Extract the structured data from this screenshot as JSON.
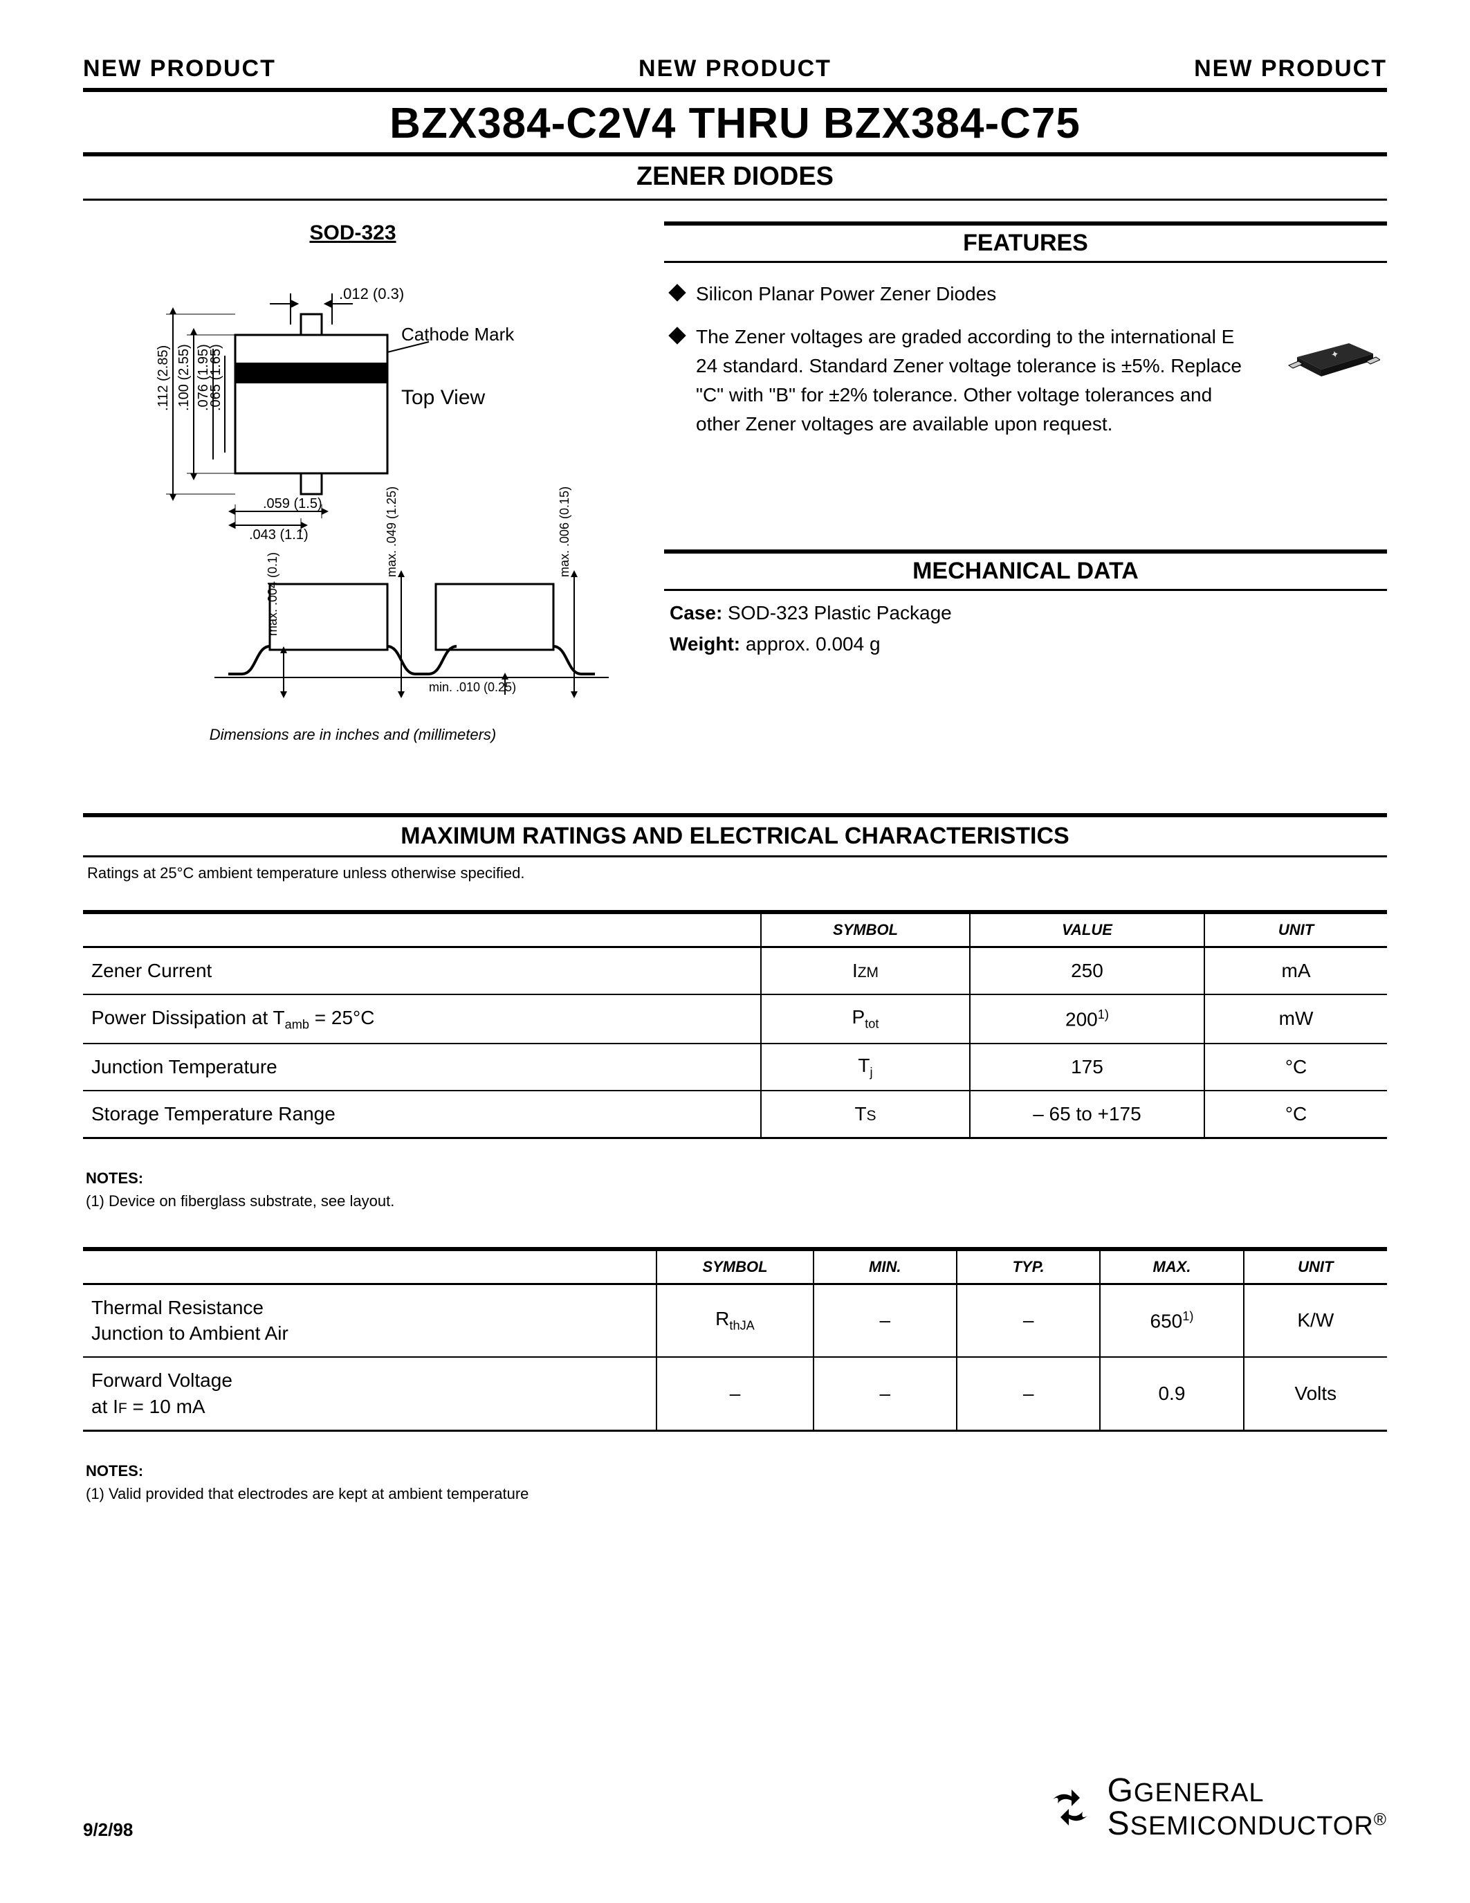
{
  "header": {
    "banner": "NEW PRODUCT",
    "title": "BZX384-C2V4 THRU BZX384-C75",
    "subtitle": "ZENER DIODES"
  },
  "package": {
    "label": "SOD-323",
    "top_view": "Top View",
    "cathode_mark": "Cathode Mark",
    "dims_note": "Dimensions are in inches and (millimeters)",
    "dims": {
      "lead_w": ".012 (0.3)",
      "body_h_outer": ".112 (2.85)",
      "body_h_inner": ".100 (2.55)",
      "body_w_inner": ".076 (1.95)",
      "body_w_inner2": ".065 (1.65)",
      "lead_len_outer": ".059 (1.5)",
      "lead_len_inner": ".043 (1.1)",
      "side_h1": "max. .004 (0.1)",
      "side_h2": "max. .049 (1.25)",
      "side_h3": "max. .006 (0.15)",
      "side_gap": "min. .010 (0.25)"
    }
  },
  "features": {
    "heading": "FEATURES",
    "items": [
      "Silicon Planar Power Zener Diodes",
      "The Zener voltages are graded according to the international E 24 standard. Standard Zener voltage tolerance is ±5%. Replace \"C\" with \"B\" for ±2% tolerance. Other voltage tolerances and other Zener voltages are available upon request."
    ]
  },
  "mechanical": {
    "heading": "MECHANICAL DATA",
    "case_label": "Case:",
    "case_value": "SOD-323 Plastic Package",
    "weight_label": "Weight:",
    "weight_value": "approx. 0.004 g"
  },
  "max_ratings": {
    "heading": "MAXIMUM RATINGS AND ELECTRICAL CHARACTERISTICS",
    "condition": "Ratings at 25°C ambient temperature unless otherwise specified."
  },
  "table1": {
    "columns": [
      "",
      "SYMBOL",
      "VALUE",
      "UNIT"
    ],
    "col_widths": [
      "52%",
      "16%",
      "18%",
      "14%"
    ],
    "rows": [
      {
        "param_html": "Zener Current",
        "symbol_html": "I<span class='smcap'>ZM</span>",
        "value_html": "250",
        "unit": "mA"
      },
      {
        "param_html": "Power Dissipation at T<span class='sub'>amb</span> = 25°C",
        "symbol_html": "P<span class='sub'>tot</span>",
        "value_html": "200<span class='sup'>1)</span>",
        "unit": "mW"
      },
      {
        "param_html": "Junction Temperature",
        "symbol_html": "T<span class='sub'>j</span>",
        "value_html": "175",
        "unit": "°C"
      },
      {
        "param_html": "Storage Temperature Range",
        "symbol_html": "T<span class='smcap'>S</span>",
        "value_html": "– 65 to +175",
        "unit": "°C"
      }
    ]
  },
  "notes1": {
    "heading": "NOTES:",
    "text": "(1) Device on fiberglass substrate, see layout."
  },
  "table2": {
    "columns": [
      "",
      "SYMBOL",
      "MIN.",
      "TYP.",
      "MAX.",
      "UNIT"
    ],
    "col_widths": [
      "44%",
      "12%",
      "11%",
      "11%",
      "11%",
      "11%"
    ],
    "rows": [
      {
        "param_html": "Thermal Resistance<br>Junction to Ambient Air",
        "symbol_html": "R<span class='sub'>thJA</span>",
        "min": "–",
        "typ": "–",
        "max_html": "650<span class='sup'>1)</span>",
        "unit": "K/W"
      },
      {
        "param_html": "Forward Voltage<br>at I<span class='smcap'>F</span> = 10 mA",
        "symbol_html": "–",
        "min": "–",
        "typ": "–",
        "max_html": "0.9",
        "unit": "Volts"
      }
    ]
  },
  "notes2": {
    "heading": "NOTES:",
    "text": "(1) Valid provided that electrodes are kept at ambient temperature"
  },
  "footer": {
    "date": "9/2/98",
    "company_line1": "GENERAL",
    "company_line2": "SEMICONDUCTOR",
    "reg": "®"
  },
  "style": {
    "text_color": "#000000",
    "bg_color": "#ffffff",
    "rule_thick": 6,
    "rule_thin": 3
  }
}
